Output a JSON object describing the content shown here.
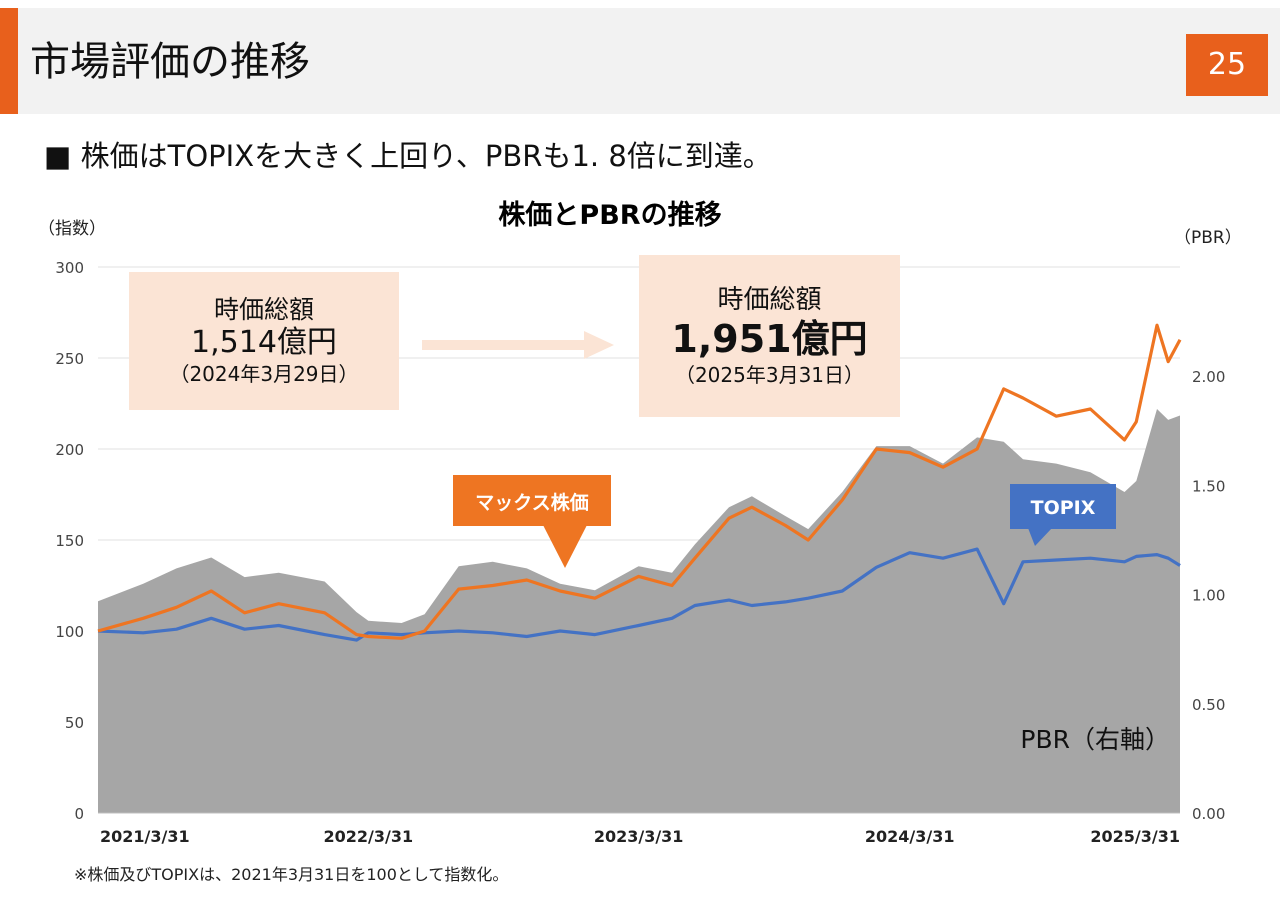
{
  "header": {
    "title": "市場評価の推移",
    "page_number": "25"
  },
  "headline": "■ 株価はTOPIXを大きく上回り、PBRも1. 8倍に到達。",
  "callouts": [
    {
      "label": "時価総額",
      "value": "1,514億円",
      "date": "（2024年3月29日）"
    },
    {
      "label": "時価総額",
      "value": "1,951億円",
      "date": "（2025年3月31日）"
    }
  ],
  "footnote": "※株価及びTOPIXは、2021年3月31日を100として指数化。",
  "colors": {
    "accent": "#e8601c",
    "stock": "#ee7522",
    "topix": "#4472c4",
    "pbr": "#a6a6a6",
    "callout_bg": "#fbe4d5"
  },
  "chart_data": {
    "type": "line",
    "title": "株価とPBRの推移",
    "ylabel": "（指数）",
    "y2label": "（PBR）",
    "ylim": [
      0,
      300
    ],
    "y2lim": [
      0,
      2.5
    ],
    "yticks": [
      "300",
      "250",
      "200",
      "150",
      "100",
      "50",
      "0"
    ],
    "y2ticks": [
      "2.00",
      "1.50",
      "1.00",
      "0.50",
      "0.00"
    ],
    "x_labels": [
      "2021/3/31",
      "2022/3/31",
      "2023/3/31",
      "2024/3/31",
      "2025/3/31"
    ],
    "series": [
      {
        "name": "マックス株価",
        "x": [
          "2021/3/31",
          "2021/5/31",
          "2021/7/15",
          "2021/8/31",
          "2021/10/15",
          "2021/11/30",
          "2022/1/31",
          "2022/3/15",
          "2022/3/31",
          "2022/5/15",
          "2022/6/15",
          "2022/7/31",
          "2022/9/15",
          "2022/10/31",
          "2022/12/15",
          "2023/1/31",
          "2023/3/31",
          "2023/5/15",
          "2023/6/15",
          "2023/7/31",
          "2023/8/31",
          "2023/10/15",
          "2023/11/15",
          "2023/12/31",
          "2024/2/15",
          "2024/3/31",
          "2024/5/15",
          "2024/6/30",
          "2024/8/5",
          "2024/8/31",
          "2024/10/15",
          "2024/11/30",
          "2025/1/15",
          "2025/1/31",
          "2025/2/28",
          "2025/3/15",
          "2025/3/31"
        ],
        "values": [
          100,
          107,
          113,
          122,
          110,
          115,
          110,
          98,
          97,
          96,
          100,
          123,
          125,
          128,
          122,
          118,
          130,
          125,
          140,
          162,
          168,
          158,
          150,
          172,
          200,
          198,
          190,
          200,
          233,
          228,
          218,
          222,
          205,
          215,
          268,
          248,
          260
        ]
      },
      {
        "name": "TOPIX",
        "x": [
          "2021/3/31",
          "2021/5/31",
          "2021/7/15",
          "2021/8/31",
          "2021/10/15",
          "2021/11/30",
          "2022/1/31",
          "2022/3/15",
          "2022/3/31",
          "2022/5/15",
          "2022/6/15",
          "2022/7/31",
          "2022/9/15",
          "2022/10/31",
          "2022/12/15",
          "2023/1/31",
          "2023/3/31",
          "2023/5/15",
          "2023/6/15",
          "2023/7/31",
          "2023/8/31",
          "2023/10/15",
          "2023/11/15",
          "2023/12/31",
          "2024/2/15",
          "2024/3/31",
          "2024/5/15",
          "2024/6/30",
          "2024/8/5",
          "2024/8/31",
          "2024/10/15",
          "2024/11/30",
          "2025/1/15",
          "2025/1/31",
          "2025/2/28",
          "2025/3/15",
          "2025/3/31"
        ],
        "values": [
          100,
          99,
          101,
          107,
          101,
          103,
          98,
          95,
          99,
          98,
          99,
          100,
          99,
          97,
          100,
          98,
          103,
          107,
          114,
          117,
          114,
          116,
          118,
          122,
          135,
          143,
          140,
          145,
          115,
          138,
          139,
          140,
          138,
          141,
          142,
          140,
          136
        ]
      },
      {
        "name": "PBR（右軸）",
        "axis": "right",
        "x": [
          "2021/3/31",
          "2021/5/31",
          "2021/7/15",
          "2021/8/31",
          "2021/10/15",
          "2021/11/30",
          "2022/1/31",
          "2022/3/15",
          "2022/3/31",
          "2022/5/15",
          "2022/6/15",
          "2022/7/31",
          "2022/9/15",
          "2022/10/31",
          "2022/12/15",
          "2023/1/31",
          "2023/3/31",
          "2023/5/15",
          "2023/6/15",
          "2023/7/31",
          "2023/8/31",
          "2023/10/15",
          "2023/11/15",
          "2023/12/31",
          "2024/2/15",
          "2024/3/31",
          "2024/5/15",
          "2024/6/30",
          "2024/8/5",
          "2024/8/31",
          "2024/10/15",
          "2024/11/30",
          "2025/1/15",
          "2025/1/31",
          "2025/2/28",
          "2025/3/15",
          "2025/3/31"
        ],
        "values": [
          0.97,
          1.05,
          1.12,
          1.17,
          1.08,
          1.1,
          1.06,
          0.92,
          0.88,
          0.87,
          0.91,
          1.13,
          1.15,
          1.12,
          1.05,
          1.02,
          1.13,
          1.1,
          1.23,
          1.4,
          1.45,
          1.36,
          1.3,
          1.47,
          1.68,
          1.68,
          1.6,
          1.72,
          1.7,
          1.62,
          1.6,
          1.56,
          1.47,
          1.52,
          1.85,
          1.8,
          1.82
        ]
      }
    ],
    "legend": "inline-labels"
  }
}
